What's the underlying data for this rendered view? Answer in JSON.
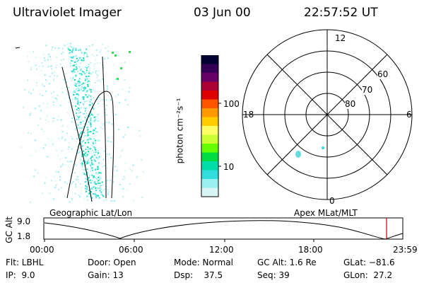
{
  "header": {
    "title": "Ultraviolet Imager",
    "date": "03 Jun 00",
    "time": "22:57:52 UT"
  },
  "colorbar": {
    "unit_label": "photon cm⁻²s⁻¹",
    "ticks": [
      "100",
      "10"
    ],
    "colors": [
      "#000033",
      "#330055",
      "#660066",
      "#aa0033",
      "#dd0000",
      "#ff5500",
      "#ff9900",
      "#ffcc00",
      "#ffff66",
      "#ccff33",
      "#66ff00",
      "#00dd44",
      "#00ddaa",
      "#33dddd",
      "#99eeee",
      "#d8f4f4"
    ]
  },
  "geo_panel": {
    "caption": "Geographic Lat/Lon"
  },
  "polar_panel": {
    "caption": "Apex MLat/MLT",
    "mlt_labels": {
      "top": "12",
      "left": "18",
      "right": "6",
      "bottom": "0"
    },
    "lat_labels": [
      "60",
      "70",
      "80"
    ]
  },
  "altitude_plot": {
    "ylabel": "GC Alt",
    "yticks": [
      "9.0",
      "1.8"
    ],
    "xticks": [
      "00:00",
      "06:00",
      "12:00",
      "18:00",
      "23:59"
    ]
  },
  "info": {
    "row1": {
      "flt": "Flt: LBHL",
      "door": "Door: Open",
      "mode": "Mode: Normal",
      "gcalt": "GC Alt: 1.6 Re",
      "glat": "GLat: −81.6"
    },
    "row2": {
      "ip": "IP:  9.0",
      "gain": "Gain: 13",
      "dsp": "Dsp:    37.5",
      "seq": "Seq: 39",
      "glon": "GLon:  27.2"
    }
  }
}
